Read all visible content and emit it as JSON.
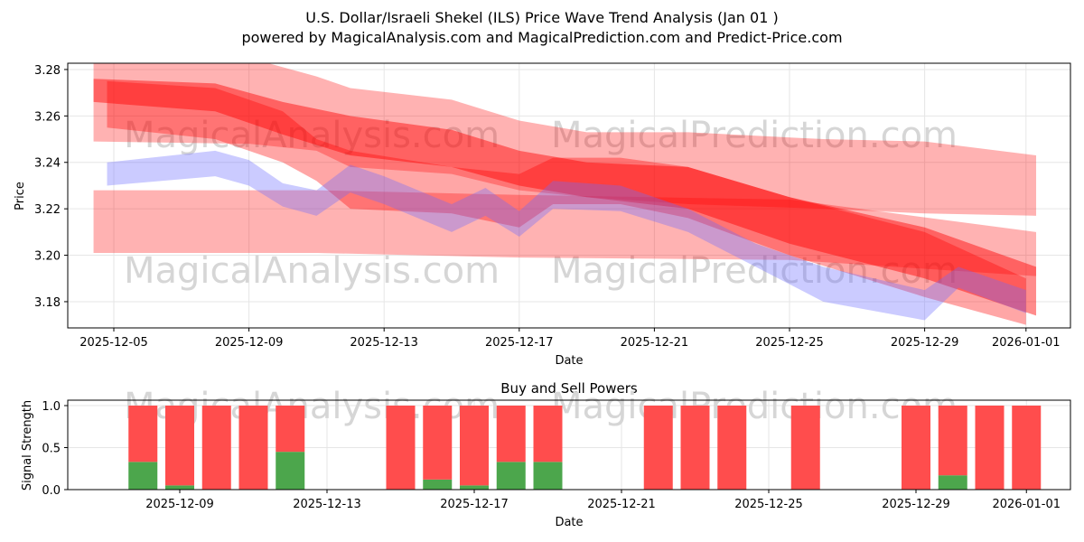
{
  "title_line1": "U.S. Dollar/Israeli Shekel (ILS) Price Wave Trend Analysis (Jan 01 )",
  "title_line2": "powered by MagicalAnalysis.com and MagicalPrediction.com and Predict-Price.com",
  "watermarks": [
    "MagicalAnalysis.com",
    "MagicalPrediction.com"
  ],
  "colors": {
    "sell": "#ff4d4d",
    "buy": "#4ca64c",
    "band_red": "#ff0000",
    "band_blue": "#6a6aff"
  },
  "chart_data": [
    {
      "type": "area",
      "title": "",
      "xlabel": "Date",
      "ylabel": "Price",
      "ylim": [
        3.1687,
        3.2827
      ],
      "x_origin": "2025-12-01",
      "x_tick_labels": [
        "2025-12-05",
        "2025-12-09",
        "2025-12-13",
        "2025-12-17",
        "2025-12-21",
        "2025-12-25",
        "2025-12-29",
        "2026-01-01"
      ],
      "x_tick_days": [
        4,
        8,
        12,
        16,
        20,
        24,
        28,
        31
      ],
      "y_ticks": [
        3.18,
        3.2,
        3.22,
        3.24,
        3.26,
        3.28
      ],
      "y_tick_labels": [
        "3.18",
        "3.20",
        "3.22",
        "3.24",
        "3.26",
        "3.28"
      ],
      "grid": true,
      "bands": [
        {
          "color": "red",
          "opacity": 0.3,
          "x": [
            3.4,
            8,
            10,
            11,
            14,
            16,
            18,
            21,
            25,
            28,
            31.3
          ],
          "upper": [
            3.29,
            3.285,
            3.277,
            3.272,
            3.267,
            3.258,
            3.253,
            3.253,
            3.25,
            3.249,
            3.243
          ],
          "lower": [
            3.249,
            3.248,
            3.245,
            3.238,
            3.235,
            3.228,
            3.225,
            3.222,
            3.22,
            3.218,
            3.217
          ]
        },
        {
          "color": "red",
          "opacity": 0.3,
          "x": [
            3.4,
            10,
            16,
            24,
            31.3
          ],
          "upper": [
            3.228,
            3.228,
            3.226,
            3.224,
            3.21
          ],
          "lower": [
            3.201,
            3.201,
            3.199,
            3.198,
            3.191
          ]
        },
        {
          "color": "red",
          "opacity": 0.35,
          "x": [
            3.8,
            7,
            9,
            10,
            11,
            14,
            16,
            17,
            19,
            21,
            24,
            28,
            31
          ],
          "upper": [
            3.275,
            3.272,
            3.262,
            3.25,
            3.245,
            3.238,
            3.235,
            3.242,
            3.242,
            3.238,
            3.225,
            3.21,
            3.19
          ],
          "lower": [
            3.255,
            3.25,
            3.24,
            3.232,
            3.22,
            3.218,
            3.212,
            3.222,
            3.222,
            3.216,
            3.2,
            3.182,
            3.17
          ]
        },
        {
          "color": "red",
          "opacity": 0.45,
          "x": [
            3.4,
            7,
            9,
            11,
            14,
            16,
            18,
            21,
            24,
            28,
            31.3
          ],
          "upper": [
            3.276,
            3.274,
            3.266,
            3.26,
            3.254,
            3.245,
            3.24,
            3.238,
            3.225,
            3.212,
            3.195
          ],
          "lower": [
            3.266,
            3.262,
            3.252,
            3.243,
            3.238,
            3.23,
            3.225,
            3.22,
            3.205,
            3.19,
            3.174
          ]
        },
        {
          "color": "blue",
          "opacity": 0.35,
          "x": [
            3.8,
            7,
            8,
            9,
            10,
            11,
            12,
            14,
            15,
            16,
            17,
            19,
            21,
            23,
            25,
            28,
            29,
            31
          ],
          "upper": [
            3.24,
            3.245,
            3.241,
            3.231,
            3.228,
            3.239,
            3.234,
            3.222,
            3.229,
            3.219,
            3.232,
            3.23,
            3.22,
            3.205,
            3.195,
            3.185,
            3.195,
            3.185
          ],
          "lower": [
            3.23,
            3.234,
            3.23,
            3.221,
            3.217,
            3.227,
            3.222,
            3.21,
            3.217,
            3.208,
            3.22,
            3.219,
            3.21,
            3.195,
            3.18,
            3.172,
            3.186,
            3.175
          ]
        }
      ]
    },
    {
      "type": "bar",
      "title": "Buy and Sell Powers",
      "xlabel": "Date",
      "ylabel": "Signal Strength",
      "ylim": [
        0,
        1.05
      ],
      "y_ticks": [
        0,
        0.5,
        1.0
      ],
      "y_tick_labels": [
        "0.0",
        "0.5",
        "1.0"
      ],
      "x_tick_labels": [
        "2025-12-09",
        "2025-12-13",
        "2025-12-17",
        "2025-12-21",
        "2025-12-25",
        "2025-12-29",
        "2026-01-01"
      ],
      "x_tick_days": [
        8,
        12,
        16,
        20,
        24,
        28,
        31
      ],
      "categories": [
        "2025-12-08",
        "2025-12-09",
        "2025-12-10",
        "2025-12-11",
        "2025-12-12",
        "2025-12-15",
        "2025-12-16",
        "2025-12-17",
        "2025-12-18",
        "2025-12-19",
        "2025-12-22",
        "2025-12-23",
        "2025-12-24",
        "2025-12-26",
        "2025-12-29",
        "2025-12-30",
        "2025-12-31",
        "2026-01-01"
      ],
      "days": [
        7,
        8,
        9,
        10,
        11,
        14,
        15,
        16,
        17,
        18,
        21,
        22,
        23,
        25,
        28,
        29,
        30,
        31
      ],
      "series": [
        {
          "name": "Buy",
          "values": [
            0.33,
            0.05,
            0,
            0,
            0.45,
            0,
            0.12,
            0.05,
            0.33,
            0.33,
            0,
            0,
            0,
            0,
            0,
            0.17,
            0,
            0
          ]
        },
        {
          "name": "Sell",
          "values": [
            0.67,
            0.95,
            1,
            1,
            0.55,
            1,
            0.88,
            0.95,
            0.67,
            0.67,
            1,
            1,
            1,
            1,
            1,
            0.83,
            1,
            1
          ]
        }
      ]
    }
  ]
}
